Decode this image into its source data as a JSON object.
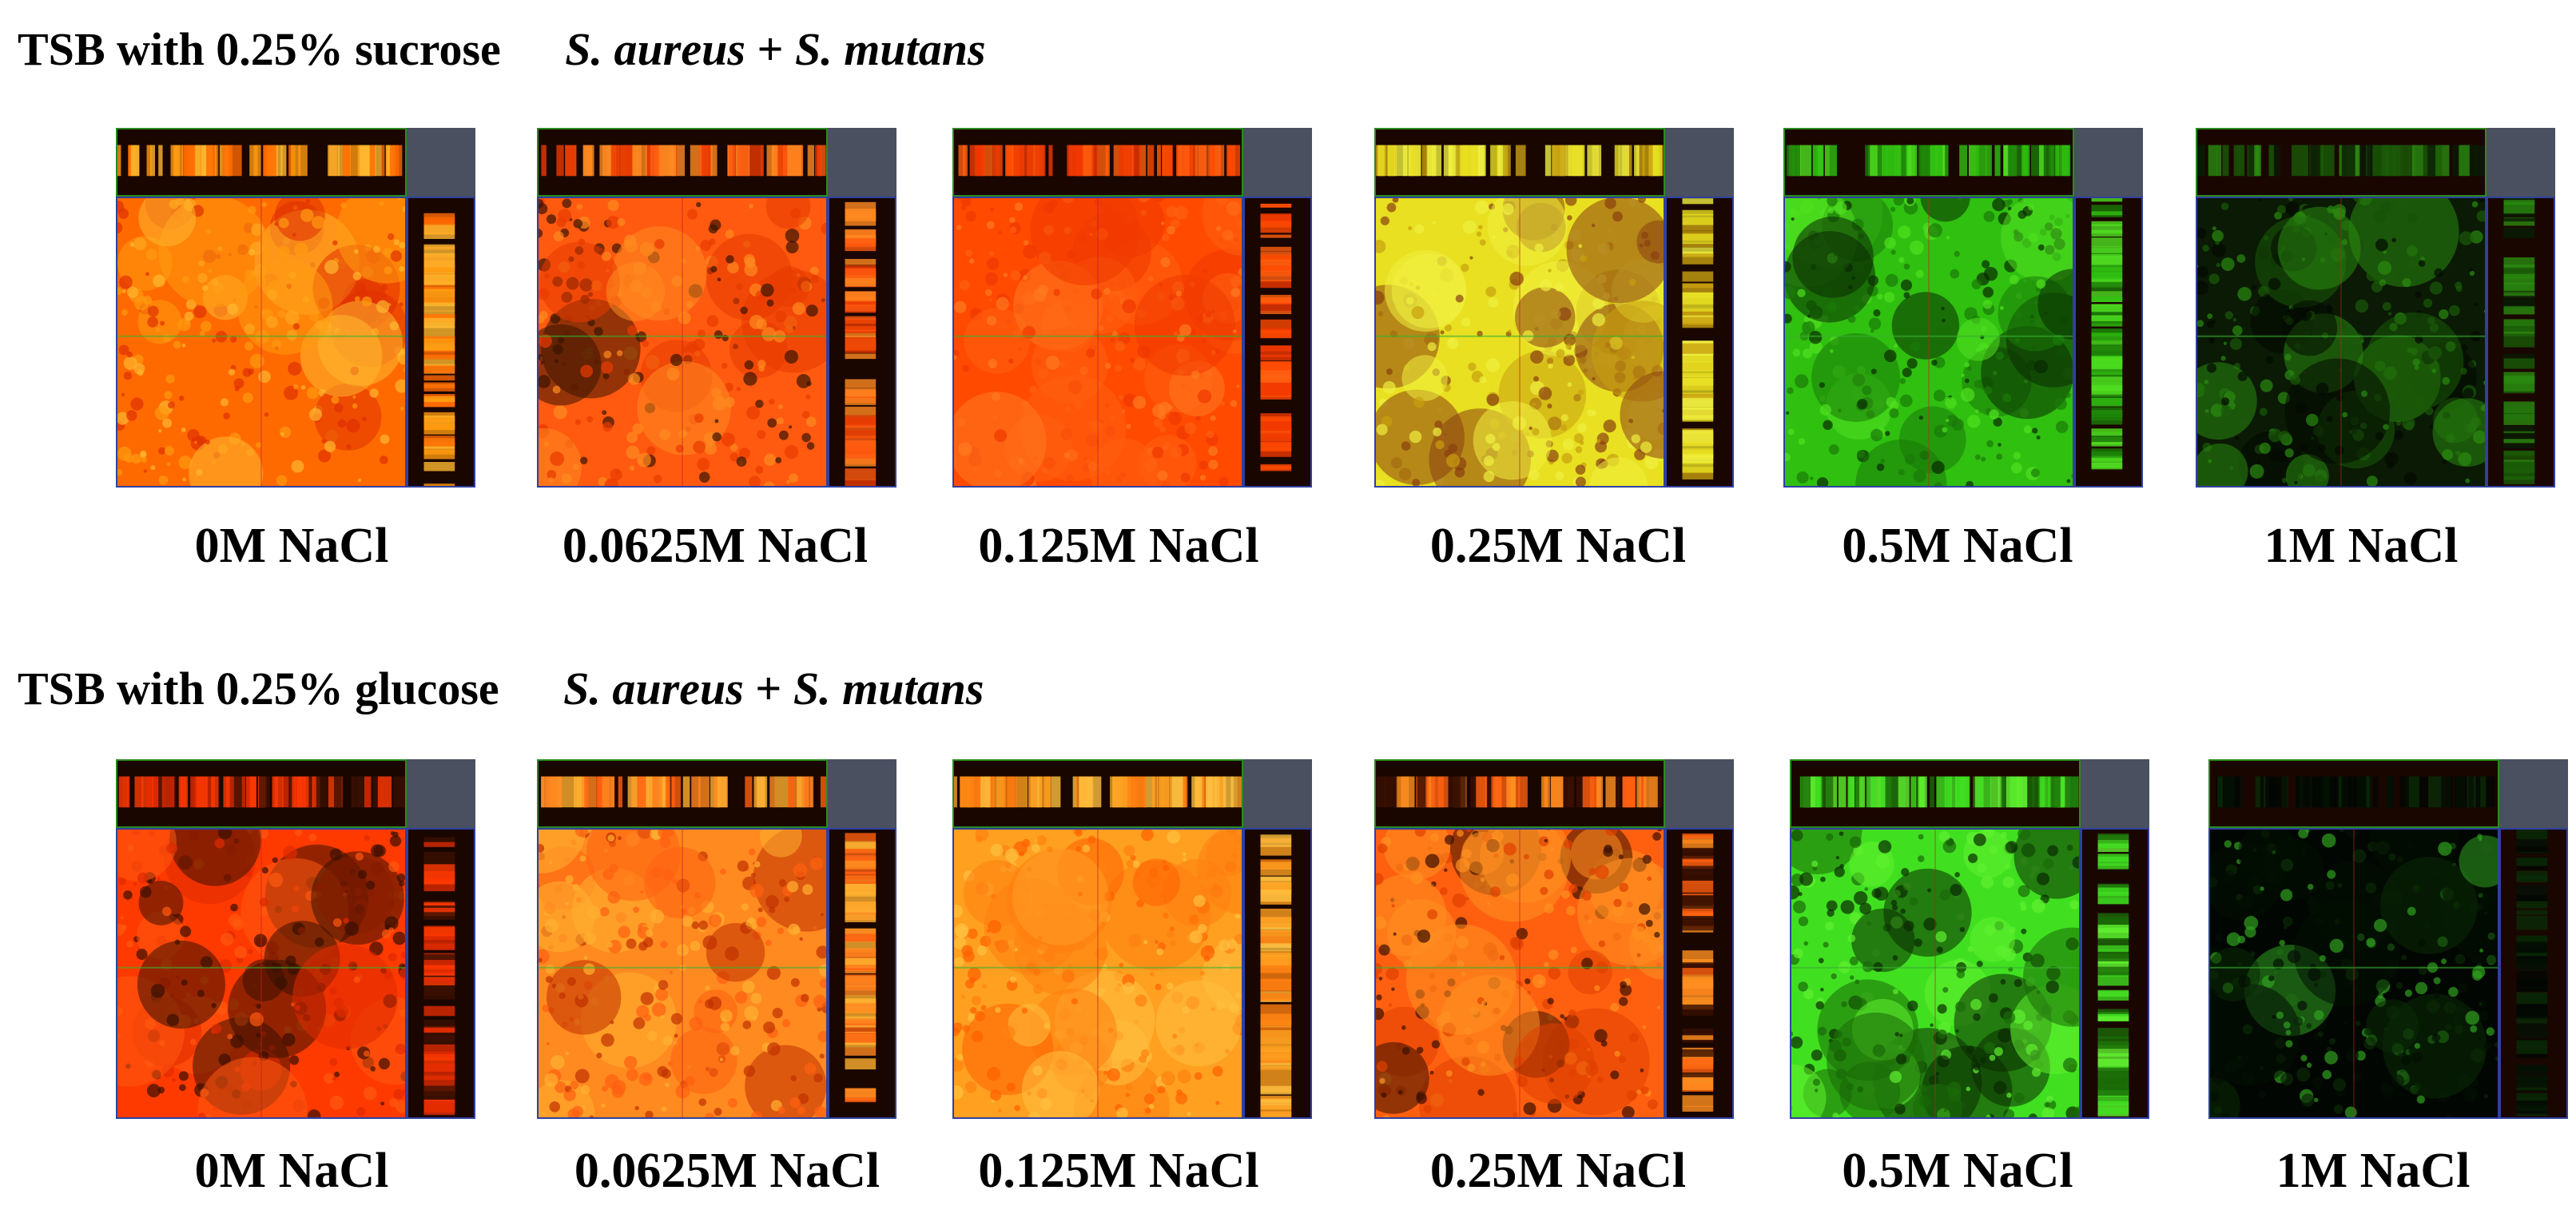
{
  "rows": [
    {
      "condition": "TSB with 0.25% sucrose",
      "organisms": {
        "first": "S. aureus",
        "plus": "+",
        "second": "S. mutans"
      },
      "panels": [
        {
          "label": "0M NaCl",
          "palette": [
            "#ff6a00",
            "#ff9a10",
            "#ffb830",
            "#e03000"
          ]
        },
        {
          "label": "0.0625M NaCl",
          "palette": [
            "#ff5a10",
            "#e83a00",
            "#ff8a20",
            "#3a1400"
          ]
        },
        {
          "label": "0.125M NaCl",
          "palette": [
            "#ff4a00",
            "#ff6010",
            "#f03800",
            "#ff7a20"
          ]
        },
        {
          "label": "0.25M NaCl",
          "palette": [
            "#e8e020",
            "#c8a010",
            "#f0f040",
            "#8a4010"
          ]
        },
        {
          "label": "0.5M NaCl",
          "palette": [
            "#30c010",
            "#1a7a08",
            "#50e020",
            "#0a2a02"
          ]
        },
        {
          "label": "1M NaCl",
          "palette": [
            "#0a1a04",
            "#1a5a08",
            "#2a8a10",
            "#040a02"
          ]
        }
      ]
    },
    {
      "condition": "TSB with 0.25% glucose",
      "organisms": {
        "first": "S. aureus",
        "plus": "+",
        "second": "S. mutans"
      },
      "panels": [
        {
          "label": "0M NaCl",
          "palette": [
            "#ff3a00",
            "#e02a00",
            "#3a1000",
            "#ff5a10"
          ]
        },
        {
          "label": "0.0625M NaCl",
          "palette": [
            "#ff8a20",
            "#ffb030",
            "#ff6010",
            "#c03000"
          ]
        },
        {
          "label": "0.125M NaCl",
          "palette": [
            "#ffa020",
            "#ffc040",
            "#ff8010",
            "#ff6000"
          ]
        },
        {
          "label": "0.25M NaCl",
          "palette": [
            "#ff6010",
            "#ff9020",
            "#3a1000",
            "#e04000"
          ]
        },
        {
          "label": "0.5M NaCl",
          "palette": [
            "#40e020",
            "#1a6a08",
            "#60f030",
            "#0a2a02"
          ]
        },
        {
          "label": "1M NaCl",
          "palette": [
            "#020602",
            "#041004",
            "#0a2a06",
            "#30a020"
          ]
        }
      ]
    }
  ],
  "colors": {
    "corner": "#4a5060",
    "frame_top": "#2a8a20",
    "frame_side": "#3040a0",
    "crosshair_h": "#3ab030",
    "crosshair_v": "#c02020"
  }
}
